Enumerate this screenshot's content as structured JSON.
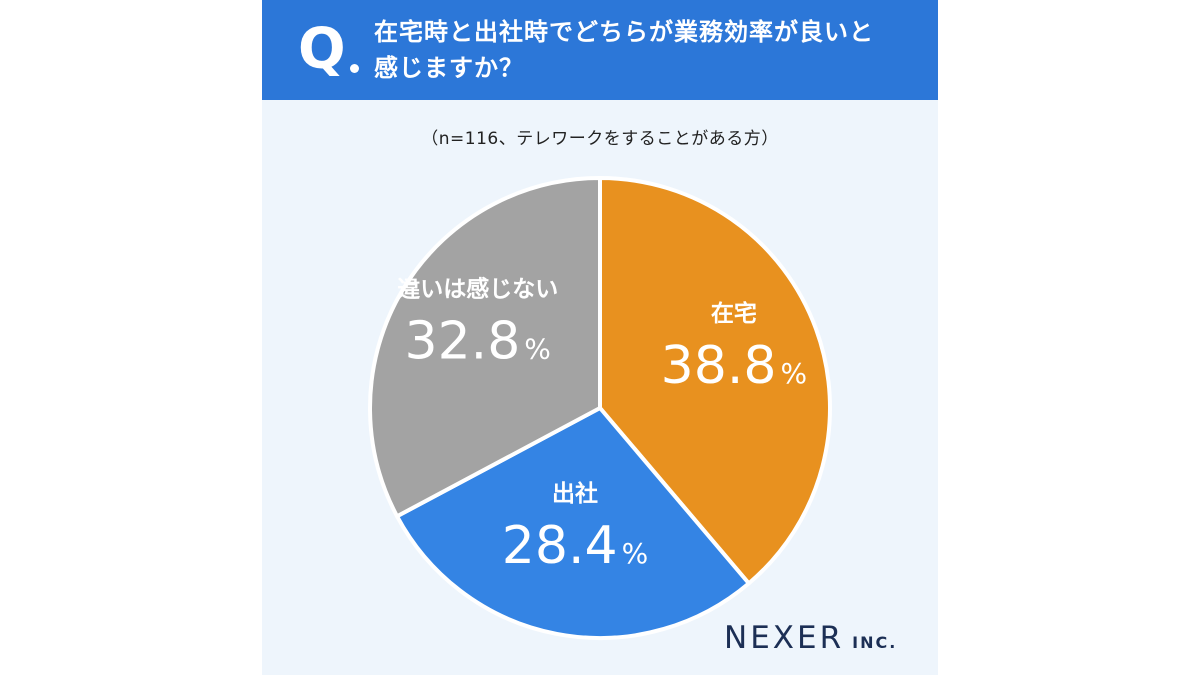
{
  "question": {
    "mark": "Q",
    "line1": "在宅時と出社時でどちらが業務効率が良いと",
    "line2": "感じますか？"
  },
  "sample_note": "（n=116、テレワークをすることがある方）",
  "brand": {
    "name": "NEXER",
    "suffix": "INC."
  },
  "chart_data": {
    "type": "pie",
    "unit": "%",
    "slices": [
      {
        "label": "在宅",
        "value": 38.8,
        "display": "38.8",
        "color": "#e8911f"
      },
      {
        "label": "出社",
        "value": 28.4,
        "display": "28.4",
        "color": "#3484e4"
      },
      {
        "label": "違いは感じない",
        "value": 32.8,
        "display": "32.8",
        "color": "#a3a3a3"
      }
    ]
  }
}
